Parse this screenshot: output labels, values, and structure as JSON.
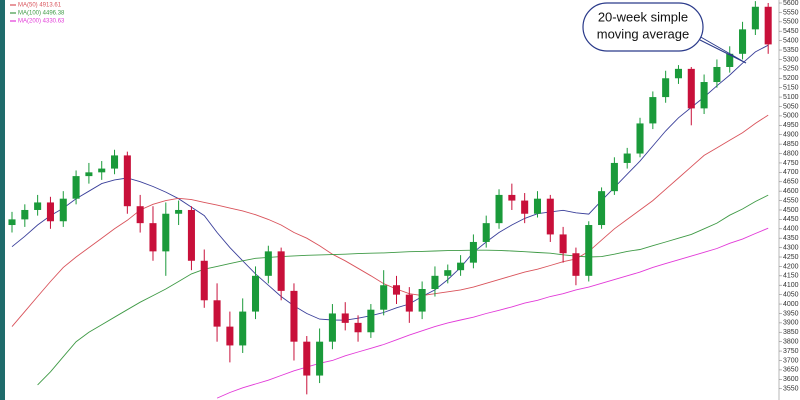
{
  "chart_data": {
    "type": "candlestick",
    "categories": [
      null,
      null,
      null,
      null,
      null,
      null,
      null,
      null,
      null,
      null,
      null,
      null,
      null,
      null,
      null,
      null,
      null,
      null,
      null,
      null,
      null,
      null,
      null,
      null,
      null,
      null,
      null,
      null,
      null,
      null,
      null,
      null,
      null,
      null,
      null,
      null,
      null,
      null,
      null,
      null,
      null,
      null,
      null,
      null,
      null,
      null,
      null,
      null,
      null,
      null,
      null,
      null,
      null,
      null,
      null,
      null,
      null,
      null,
      null,
      null
    ],
    "candles": {
      "up_color": "#1a9a3a",
      "down_color": "#c8103a",
      "wick_color": "#555555",
      "open": [
        4420,
        4450,
        4500,
        4540,
        4440,
        4560,
        4680,
        4700,
        4720,
        4790,
        4520,
        4430,
        4280,
        4480,
        4500,
        4230,
        4020,
        3880,
        3780,
        3960,
        4150,
        4280,
        4070,
        3800,
        3620,
        3800,
        3950,
        3900,
        3850,
        3970,
        4100,
        4050,
        3960,
        4080,
        4150,
        4180,
        4220,
        4330,
        4430,
        4580,
        4550,
        4480,
        4560,
        4370,
        4270,
        4150,
        4420,
        4600,
        4750,
        4800,
        4960,
        5100,
        5200,
        5250,
        5040,
        5180,
        5260,
        5330,
        5460,
        5580
      ],
      "high": [
        4490,
        4530,
        4580,
        4570,
        4600,
        4710,
        4750,
        4760,
        4820,
        4810,
        4580,
        4520,
        4540,
        4550,
        4520,
        4290,
        4110,
        3960,
        4030,
        4200,
        4310,
        4300,
        4110,
        3830,
        3870,
        4000,
        4010,
        3940,
        4000,
        4180,
        4150,
        4090,
        4120,
        4200,
        4210,
        4260,
        4370,
        4470,
        4610,
        4640,
        4590,
        4600,
        4580,
        4410,
        4300,
        4440,
        4620,
        4780,
        4830,
        4990,
        5130,
        5240,
        5270,
        5260,
        5220,
        5300,
        5370,
        5500,
        5610,
        5600
      ],
      "low": [
        4380,
        4410,
        4470,
        4400,
        4410,
        4530,
        4640,
        4660,
        4690,
        4480,
        4380,
        4230,
        4150,
        4420,
        4180,
        3980,
        3800,
        3690,
        3740,
        3920,
        4110,
        4020,
        3700,
        3520,
        3580,
        3760,
        3860,
        3800,
        3820,
        3940,
        4000,
        3900,
        3920,
        4040,
        4110,
        4150,
        4190,
        4300,
        4400,
        4500,
        4430,
        4460,
        4330,
        4220,
        4100,
        4120,
        4400,
        4580,
        4720,
        4780,
        4930,
        5070,
        5170,
        4950,
        5010,
        5150,
        5230,
        5300,
        5430,
        5330
      ],
      "close": [
        4450,
        4500,
        4540,
        4440,
        4560,
        4680,
        4700,
        4720,
        4790,
        4520,
        4430,
        4280,
        4480,
        4500,
        4230,
        4020,
        3880,
        3780,
        3960,
        4150,
        4280,
        4070,
        3800,
        3620,
        3800,
        3950,
        3900,
        3850,
        3970,
        4100,
        4050,
        3960,
        4080,
        4150,
        4180,
        4220,
        4330,
        4430,
        4580,
        4550,
        4480,
        4560,
        4370,
        4270,
        4150,
        4420,
        4600,
        4750,
        4800,
        4960,
        5100,
        5200,
        5250,
        5040,
        5180,
        5260,
        5330,
        5460,
        5580,
        5380
      ]
    },
    "series": [
      {
        "color": "#3a3f9a",
        "values": [
          4305,
          4360,
          4420,
          4470,
          4510,
          4560,
          4600,
          4640,
          4660,
          4670,
          4650,
          4625,
          4595,
          4560,
          4515,
          4470,
          4380,
          4300,
          4230,
          4160,
          4100,
          4040,
          3990,
          3950,
          3920,
          3915,
          3914,
          3925,
          3938,
          3955,
          3980,
          4000,
          4040,
          4075,
          4130,
          4195,
          4275,
          4330,
          4380,
          4420,
          4455,
          4480,
          4490,
          4498,
          4485,
          4478,
          4550,
          4620,
          4690,
          4760,
          4840,
          4920,
          4990,
          5045,
          5100,
          5160,
          5217,
          5280,
          5340,
          5376
        ]
      },
      {
        "name": "MA(50) 4913.61",
        "color": "#d9535b",
        "values": [
          3880,
          3960,
          4040,
          4120,
          4195,
          4250,
          4300,
          4350,
          4400,
          4445,
          4500,
          4530,
          4550,
          4562,
          4555,
          4540,
          4526,
          4510,
          4495,
          4475,
          4450,
          4420,
          4380,
          4350,
          4310,
          4265,
          4230,
          4190,
          4150,
          4108,
          4080,
          4055,
          4045,
          4055,
          4065,
          4075,
          4090,
          4110,
          4130,
          4150,
          4170,
          4185,
          4205,
          4225,
          4240,
          4280,
          4340,
          4400,
          4450,
          4500,
          4550,
          4610,
          4670,
          4730,
          4790,
          4830,
          4871,
          4910,
          4960,
          5004
        ]
      },
      {
        "name": "MA(100) 4496.38",
        "color": "#3f9a46",
        "values": [
          null,
          null,
          3570,
          3640,
          3720,
          3800,
          3850,
          3890,
          3930,
          3970,
          4010,
          4045,
          4080,
          4120,
          4160,
          4185,
          4200,
          4215,
          4230,
          4243,
          4248,
          4252,
          4256,
          4259,
          4261,
          4263,
          4265,
          4268,
          4270,
          4272,
          4275,
          4278,
          4280,
          4282,
          4284,
          4285,
          4286,
          4286,
          4285,
          4282,
          4278,
          4274,
          4270,
          4262,
          4255,
          4250,
          4252,
          4265,
          4280,
          4290,
          4310,
          4330,
          4350,
          4370,
          4400,
          4430,
          4472,
          4505,
          4545,
          4579
        ]
      },
      {
        "name": "MA(200) 4330.63",
        "color": "#e23ad8",
        "values": [
          null,
          null,
          null,
          null,
          null,
          null,
          null,
          null,
          null,
          null,
          null,
          null,
          null,
          null,
          null,
          null,
          3500,
          3530,
          3555,
          3575,
          3595,
          3620,
          3645,
          3665,
          3685,
          3700,
          3725,
          3745,
          3765,
          3785,
          3810,
          3835,
          3858,
          3880,
          3900,
          3915,
          3930,
          3950,
          3967,
          3985,
          4005,
          4020,
          4040,
          4055,
          4075,
          4090,
          4110,
          4130,
          4150,
          4170,
          4195,
          4215,
          4235,
          4255,
          4275,
          4295,
          4323,
          4345,
          4375,
          4403
        ]
      }
    ],
    "ylim": [
      3490,
      5616
    ],
    "yticks": [
      3550,
      3600,
      3650,
      3700,
      3750,
      3800,
      3850,
      3900,
      3950,
      4000,
      4050,
      4100,
      4150,
      4200,
      4250,
      4300,
      4350,
      4400,
      4450,
      4500,
      4550,
      4600,
      4650,
      4700,
      4750,
      4800,
      4850,
      4900,
      4950,
      5000,
      5050,
      5100,
      5150,
      5200,
      5250,
      5300,
      5350,
      5400,
      5450,
      5500,
      5550,
      5600
    ],
    "annotation": {
      "lines": [
        "20-week simple",
        "moving average"
      ]
    }
  }
}
